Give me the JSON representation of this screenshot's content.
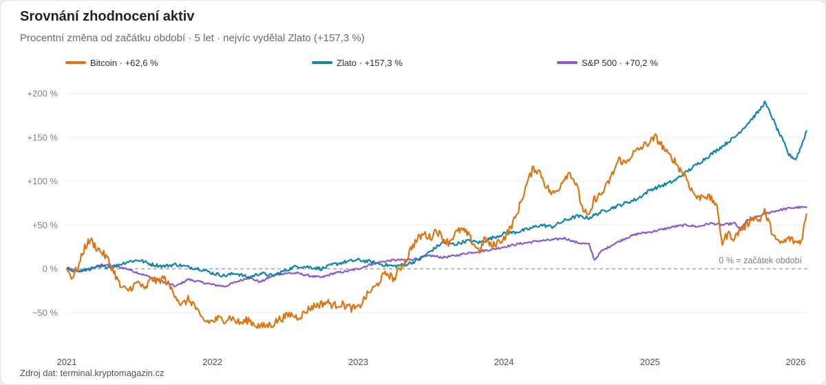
{
  "chart_data": {
    "type": "line",
    "title": "Srovnání zhodnocení aktiv",
    "subtitle": "Procentní změna od začátku období · 5 let · nejvíc vydělal Zlato (+157,3 %)",
    "source": "Zdroj dat: terminal.kryptomagazin.cz",
    "x_range": [
      "2021-01-01",
      "2026-02-01"
    ],
    "x_ticks": [
      {
        "date": "2021-01-01",
        "label": "2021"
      },
      {
        "date": "2022-01-01",
        "label": "2022"
      },
      {
        "date": "2023-01-01",
        "label": "2023"
      },
      {
        "date": "2024-01-01",
        "label": "2024"
      },
      {
        "date": "2025-01-01",
        "label": "2025"
      },
      {
        "date": "2026-01-01",
        "label": "2026"
      }
    ],
    "ylim": [
      -80,
      205
    ],
    "y_ticks": [
      {
        "value": 200,
        "label": "+200 %"
      },
      {
        "value": 150,
        "label": "+150 %"
      },
      {
        "value": 100,
        "label": "+100 %"
      },
      {
        "value": 50,
        "label": "+50 %"
      },
      {
        "value": 0,
        "label": "0 %"
      },
      {
        "value": -50,
        "label": "−50 %"
      }
    ],
    "grid": true,
    "legend_position": "top",
    "baseline": {
      "value": 0,
      "label": "0 % = začátek období",
      "color": "#8a8f96"
    },
    "series": [
      {
        "name": "Bitcoin",
        "legend_label": "Bitcoin · +62,6 %",
        "color": "#e2720f",
        "points": [
          [
            "2021-01-01",
            0
          ],
          [
            "2021-01-15",
            -10
          ],
          [
            "2021-02-01",
            5
          ],
          [
            "2021-02-15",
            25
          ],
          [
            "2021-03-01",
            33
          ],
          [
            "2021-03-15",
            25
          ],
          [
            "2021-04-01",
            18
          ],
          [
            "2021-04-15",
            10
          ],
          [
            "2021-05-01",
            -5
          ],
          [
            "2021-05-15",
            -20
          ],
          [
            "2021-06-01",
            -25
          ],
          [
            "2021-06-15",
            -20
          ],
          [
            "2021-07-01",
            -15
          ],
          [
            "2021-07-15",
            -25
          ],
          [
            "2021-08-01",
            -10
          ],
          [
            "2021-08-15",
            -15
          ],
          [
            "2021-09-01",
            -10
          ],
          [
            "2021-09-15",
            -20
          ],
          [
            "2021-10-01",
            -30
          ],
          [
            "2021-10-15",
            -42
          ],
          [
            "2021-11-01",
            -35
          ],
          [
            "2021-11-15",
            -40
          ],
          [
            "2021-12-01",
            -55
          ],
          [
            "2021-12-15",
            -60
          ],
          [
            "2022-01-01",
            -60
          ],
          [
            "2022-01-15",
            -57
          ],
          [
            "2022-02-01",
            -58
          ],
          [
            "2022-02-15",
            -55
          ],
          [
            "2022-03-01",
            -60
          ],
          [
            "2022-03-15",
            -62
          ],
          [
            "2022-04-01",
            -58
          ],
          [
            "2022-04-15",
            -63
          ],
          [
            "2022-05-01",
            -66
          ],
          [
            "2022-05-15",
            -65
          ],
          [
            "2022-06-01",
            -63
          ],
          [
            "2022-06-15",
            -58
          ],
          [
            "2022-07-01",
            -55
          ],
          [
            "2022-07-15",
            -52
          ],
          [
            "2022-08-01",
            -55
          ],
          [
            "2022-08-15",
            -52
          ],
          [
            "2022-09-01",
            -45
          ],
          [
            "2022-09-15",
            -42
          ],
          [
            "2022-10-01",
            -40
          ],
          [
            "2022-10-15",
            -38
          ],
          [
            "2022-11-01",
            -42
          ],
          [
            "2022-11-15",
            -40
          ],
          [
            "2022-12-01",
            -42
          ],
          [
            "2022-12-15",
            -45
          ],
          [
            "2023-01-01",
            -45
          ],
          [
            "2023-01-15",
            -35
          ],
          [
            "2023-02-01",
            -25
          ],
          [
            "2023-02-15",
            -20
          ],
          [
            "2023-03-01",
            -10
          ],
          [
            "2023-03-15",
            -5
          ],
          [
            "2023-04-01",
            -12
          ],
          [
            "2023-04-15",
            0
          ],
          [
            "2023-05-01",
            10
          ],
          [
            "2023-05-15",
            25
          ],
          [
            "2023-06-01",
            35
          ],
          [
            "2023-06-15",
            40
          ],
          [
            "2023-07-01",
            35
          ],
          [
            "2023-07-15",
            45
          ],
          [
            "2023-08-01",
            35
          ],
          [
            "2023-08-15",
            30
          ],
          [
            "2023-09-01",
            40
          ],
          [
            "2023-09-15",
            45
          ],
          [
            "2023-10-01",
            40
          ],
          [
            "2023-10-15",
            30
          ],
          [
            "2023-11-01",
            20
          ],
          [
            "2023-11-15",
            35
          ],
          [
            "2023-12-01",
            25
          ],
          [
            "2023-12-15",
            30
          ],
          [
            "2024-01-01",
            35
          ],
          [
            "2024-01-15",
            45
          ],
          [
            "2024-02-01",
            60
          ],
          [
            "2024-02-15",
            80
          ],
          [
            "2024-03-01",
            100
          ],
          [
            "2024-03-15",
            115
          ],
          [
            "2024-04-01",
            110
          ],
          [
            "2024-04-15",
            95
          ],
          [
            "2024-05-01",
            85
          ],
          [
            "2024-05-15",
            90
          ],
          [
            "2024-06-01",
            105
          ],
          [
            "2024-06-15",
            110
          ],
          [
            "2024-07-01",
            95
          ],
          [
            "2024-07-15",
            70
          ],
          [
            "2024-08-01",
            58
          ],
          [
            "2024-08-15",
            80
          ],
          [
            "2024-09-01",
            85
          ],
          [
            "2024-09-15",
            95
          ],
          [
            "2024-10-01",
            110
          ],
          [
            "2024-10-15",
            125
          ],
          [
            "2024-11-01",
            120
          ],
          [
            "2024-11-15",
            130
          ],
          [
            "2024-12-01",
            135
          ],
          [
            "2024-12-15",
            140
          ],
          [
            "2025-01-01",
            145
          ],
          [
            "2025-01-15",
            150
          ],
          [
            "2025-02-01",
            140
          ],
          [
            "2025-02-15",
            130
          ],
          [
            "2025-03-01",
            125
          ],
          [
            "2025-03-15",
            115
          ],
          [
            "2025-04-01",
            105
          ],
          [
            "2025-04-15",
            90
          ],
          [
            "2025-05-01",
            80
          ],
          [
            "2025-05-15",
            85
          ],
          [
            "2025-06-01",
            80
          ],
          [
            "2025-06-15",
            75
          ],
          [
            "2025-07-01",
            30
          ],
          [
            "2025-07-15",
            40
          ],
          [
            "2025-08-01",
            35
          ],
          [
            "2025-08-15",
            45
          ],
          [
            "2025-09-01",
            50
          ],
          [
            "2025-09-15",
            60
          ],
          [
            "2025-10-01",
            55
          ],
          [
            "2025-10-15",
            65
          ],
          [
            "2025-11-01",
            45
          ],
          [
            "2025-11-15",
            30
          ],
          [
            "2025-12-01",
            30
          ],
          [
            "2025-12-15",
            35
          ],
          [
            "2026-01-01",
            30
          ],
          [
            "2026-01-15",
            32
          ],
          [
            "2026-01-28",
            62.6
          ]
        ]
      },
      {
        "name": "Zlato",
        "legend_label": "Zlato · +157,3 %",
        "color": "#0f85a8",
        "points": [
          [
            "2021-01-01",
            0
          ],
          [
            "2021-02-01",
            -3
          ],
          [
            "2021-03-01",
            0
          ],
          [
            "2021-04-01",
            2
          ],
          [
            "2021-05-01",
            3
          ],
          [
            "2021-06-01",
            8
          ],
          [
            "2021-07-01",
            10
          ],
          [
            "2021-08-01",
            5
          ],
          [
            "2021-09-01",
            3
          ],
          [
            "2021-10-01",
            5
          ],
          [
            "2021-11-01",
            2
          ],
          [
            "2021-12-01",
            0
          ],
          [
            "2022-01-01",
            -5
          ],
          [
            "2022-02-01",
            -8
          ],
          [
            "2022-03-01",
            -5
          ],
          [
            "2022-04-01",
            -10
          ],
          [
            "2022-05-01",
            -5
          ],
          [
            "2022-06-01",
            -8
          ],
          [
            "2022-07-01",
            -2
          ],
          [
            "2022-08-01",
            3
          ],
          [
            "2022-09-01",
            2
          ],
          [
            "2022-10-01",
            0
          ],
          [
            "2022-11-01",
            5
          ],
          [
            "2022-12-01",
            8
          ],
          [
            "2023-01-01",
            10
          ],
          [
            "2023-02-01",
            8
          ],
          [
            "2023-03-01",
            5
          ],
          [
            "2023-04-01",
            3
          ],
          [
            "2023-05-01",
            5
          ],
          [
            "2023-06-01",
            10
          ],
          [
            "2023-07-01",
            20
          ],
          [
            "2023-08-01",
            30
          ],
          [
            "2023-09-01",
            28
          ],
          [
            "2023-10-01",
            32
          ],
          [
            "2023-11-01",
            30
          ],
          [
            "2023-12-01",
            35
          ],
          [
            "2024-01-01",
            40
          ],
          [
            "2024-02-01",
            42
          ],
          [
            "2024-03-01",
            45
          ],
          [
            "2024-04-01",
            50
          ],
          [
            "2024-05-01",
            48
          ],
          [
            "2024-06-01",
            55
          ],
          [
            "2024-07-01",
            60
          ],
          [
            "2024-08-01",
            58
          ],
          [
            "2024-09-01",
            65
          ],
          [
            "2024-10-01",
            70
          ],
          [
            "2024-11-01",
            75
          ],
          [
            "2024-12-01",
            80
          ],
          [
            "2025-01-01",
            90
          ],
          [
            "2025-02-01",
            95
          ],
          [
            "2025-03-01",
            100
          ],
          [
            "2025-04-01",
            110
          ],
          [
            "2025-05-01",
            120
          ],
          [
            "2025-06-01",
            130
          ],
          [
            "2025-07-01",
            140
          ],
          [
            "2025-08-01",
            150
          ],
          [
            "2025-09-01",
            165
          ],
          [
            "2025-10-01",
            180
          ],
          [
            "2025-10-15",
            190
          ],
          [
            "2025-11-01",
            175
          ],
          [
            "2025-11-15",
            160
          ],
          [
            "2025-12-01",
            145
          ],
          [
            "2025-12-15",
            130
          ],
          [
            "2026-01-01",
            125
          ],
          [
            "2026-01-15",
            140
          ],
          [
            "2026-01-28",
            157.3
          ]
        ]
      },
      {
        "name": "S&P 500",
        "legend_label": "S&P 500 · +70,2 %",
        "color": "#8c57cf",
        "points": [
          [
            "2021-01-01",
            0
          ],
          [
            "2021-02-01",
            -3
          ],
          [
            "2021-03-01",
            0
          ],
          [
            "2021-04-01",
            5
          ],
          [
            "2021-05-01",
            3
          ],
          [
            "2021-06-01",
            0
          ],
          [
            "2021-07-01",
            -5
          ],
          [
            "2021-08-01",
            -10
          ],
          [
            "2021-09-01",
            -15
          ],
          [
            "2021-10-01",
            -20
          ],
          [
            "2021-11-01",
            -12
          ],
          [
            "2021-12-01",
            -15
          ],
          [
            "2022-01-01",
            -18
          ],
          [
            "2022-02-01",
            -20
          ],
          [
            "2022-03-01",
            -15
          ],
          [
            "2022-04-01",
            -10
          ],
          [
            "2022-05-01",
            -15
          ],
          [
            "2022-06-01",
            -8
          ],
          [
            "2022-07-01",
            -5
          ],
          [
            "2022-08-01",
            -5
          ],
          [
            "2022-09-01",
            -8
          ],
          [
            "2022-10-01",
            -10
          ],
          [
            "2022-11-01",
            -5
          ],
          [
            "2022-12-01",
            -3
          ],
          [
            "2023-01-01",
            0
          ],
          [
            "2023-02-01",
            5
          ],
          [
            "2023-03-01",
            8
          ],
          [
            "2023-04-01",
            10
          ],
          [
            "2023-05-01",
            10
          ],
          [
            "2023-06-01",
            12
          ],
          [
            "2023-07-01",
            15
          ],
          [
            "2023-08-01",
            13
          ],
          [
            "2023-09-01",
            15
          ],
          [
            "2023-10-01",
            18
          ],
          [
            "2023-11-01",
            20
          ],
          [
            "2023-12-01",
            22
          ],
          [
            "2024-01-01",
            25
          ],
          [
            "2024-02-01",
            28
          ],
          [
            "2024-03-01",
            30
          ],
          [
            "2024-04-01",
            32
          ],
          [
            "2024-05-01",
            33
          ],
          [
            "2024-06-01",
            35
          ],
          [
            "2024-07-01",
            30
          ],
          [
            "2024-08-01",
            28
          ],
          [
            "2024-08-15",
            10
          ],
          [
            "2024-09-01",
            20
          ],
          [
            "2024-10-01",
            28
          ],
          [
            "2024-11-01",
            35
          ],
          [
            "2024-12-01",
            40
          ],
          [
            "2025-01-01",
            42
          ],
          [
            "2025-02-01",
            45
          ],
          [
            "2025-03-01",
            48
          ],
          [
            "2025-04-01",
            50
          ],
          [
            "2025-05-01",
            48
          ],
          [
            "2025-06-01",
            52
          ],
          [
            "2025-07-01",
            50
          ],
          [
            "2025-08-01",
            52
          ],
          [
            "2025-08-15",
            45
          ],
          [
            "2025-09-01",
            55
          ],
          [
            "2025-10-01",
            60
          ],
          [
            "2025-11-01",
            65
          ],
          [
            "2025-12-01",
            68
          ],
          [
            "2026-01-01",
            70
          ],
          [
            "2026-01-28",
            70.2
          ]
        ]
      }
    ]
  }
}
